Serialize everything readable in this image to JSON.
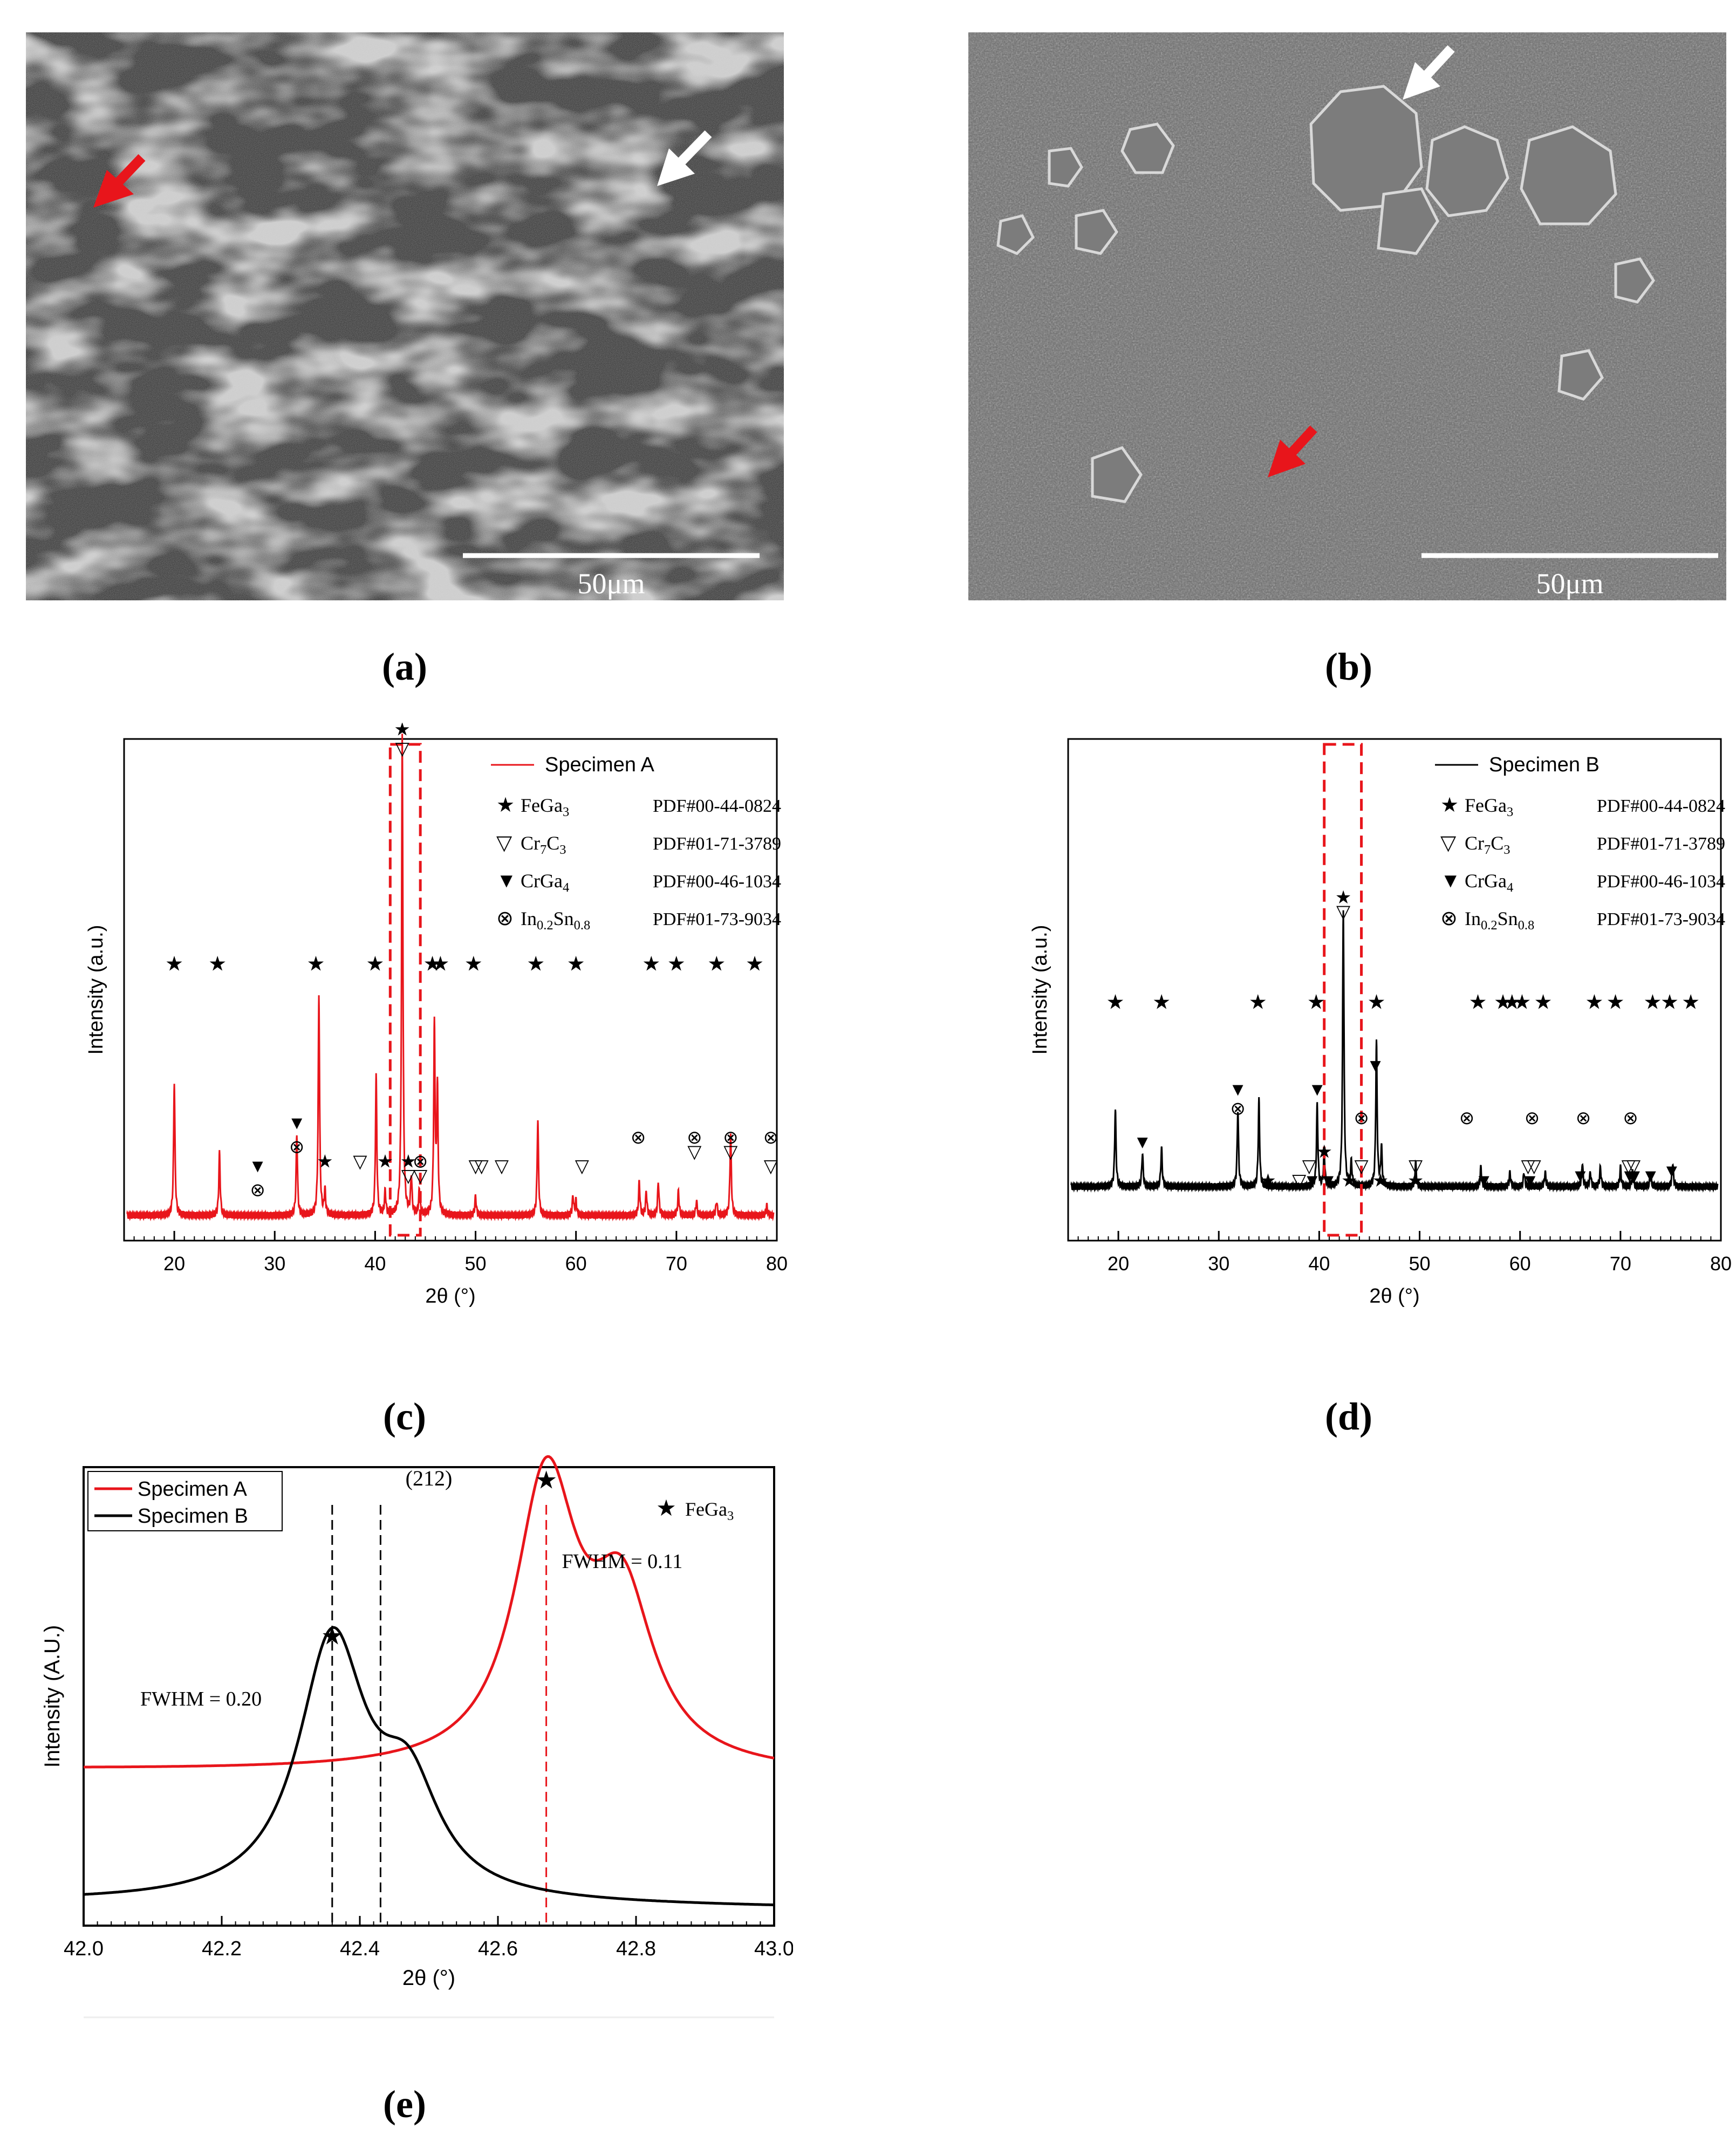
{
  "panels": {
    "a": {
      "label": "(a)",
      "scalebar": "50μm",
      "arrows": [
        "red-arrow",
        "white-arrow"
      ]
    },
    "b": {
      "label": "(b)",
      "scalebar": "50μm",
      "arrows": [
        "red-arrow",
        "white-arrow"
      ]
    },
    "c": {
      "label": "(c)",
      "legend_series": "Specimen A"
    },
    "d": {
      "label": "(d)",
      "legend_series": "Specimen B"
    },
    "e": {
      "label": "(e)"
    }
  },
  "phase_legend": [
    {
      "symbol": "★",
      "phase": "FeGa",
      "sub": "3",
      "pdf": "PDF#00-44-0824"
    },
    {
      "symbol": "▽",
      "phase": "Cr",
      "sub": "7",
      "phase2": "C",
      "sub2": "3",
      "pdf": "PDF#01-71-3789"
    },
    {
      "symbol": "▼",
      "phase": "CrGa",
      "sub": "4",
      "pdf": "PDF#00-46-1034"
    },
    {
      "symbol": "⊗",
      "phase": "In",
      "sub": "0.2",
      "phase2": "Sn",
      "sub2": "0.8",
      "pdf": "PDF#01-73-9034"
    }
  ],
  "chart_data": [
    {
      "id": "c",
      "type": "line",
      "xlabel": "2θ (°)",
      "ylabel": "Intensity (a.u.)",
      "xlim": [
        15,
        80
      ],
      "ylim": [
        0,
        100
      ],
      "x_ticks": [
        20,
        30,
        40,
        50,
        60,
        70,
        80
      ],
      "series": [
        {
          "name": "Specimen A",
          "color": "#e8151b",
          "baseline": 3,
          "peaks": [
            [
              20.0,
              28
            ],
            [
              24.5,
              13
            ],
            [
              32.2,
              17
            ],
            [
              34.4,
              46
            ],
            [
              35.0,
              5
            ],
            [
              40.1,
              29
            ],
            [
              41.0,
              5
            ],
            [
              42.7,
              100
            ],
            [
              43.6,
              8
            ],
            [
              44.4,
              5
            ],
            [
              45.9,
              39
            ],
            [
              46.2,
              26
            ],
            [
              50.0,
              4
            ],
            [
              56.2,
              20
            ],
            [
              59.7,
              4
            ],
            [
              60.0,
              3
            ],
            [
              66.3,
              7
            ],
            [
              67.0,
              5
            ],
            [
              68.2,
              7
            ],
            [
              70.2,
              5
            ],
            [
              72.0,
              3
            ],
            [
              74.0,
              3
            ],
            [
              75.4,
              17
            ],
            [
              79.0,
              2
            ]
          ]
        }
      ],
      "highlight_box": [
        41.5,
        44.5
      ]
    },
    {
      "id": "d",
      "type": "line",
      "xlabel": "2θ (°)",
      "ylabel": "Intensity (a.u.)",
      "xlim": [
        15,
        80
      ],
      "ylim": [
        0,
        100
      ],
      "x_ticks": [
        20,
        30,
        40,
        50,
        60,
        70,
        80
      ],
      "series": [
        {
          "name": "Specimen B",
          "color": "#000000",
          "baseline": 9,
          "peaks": [
            [
              19.7,
              16
            ],
            [
              22.4,
              7
            ],
            [
              24.3,
              8
            ],
            [
              31.9,
              16
            ],
            [
              34.0,
              18
            ],
            [
              39.8,
              17
            ],
            [
              40.5,
              7
            ],
            [
              42.4,
              58
            ],
            [
              43.2,
              5
            ],
            [
              45.7,
              30
            ],
            [
              46.2,
              8
            ],
            [
              49.6,
              5
            ],
            [
              56.1,
              4
            ],
            [
              59.0,
              3
            ],
            [
              60.4,
              3
            ],
            [
              62.5,
              3
            ],
            [
              66.2,
              5
            ],
            [
              67.0,
              3
            ],
            [
              68.0,
              4
            ],
            [
              70.0,
              4
            ],
            [
              71.2,
              3
            ],
            [
              73.0,
              3
            ],
            [
              75.2,
              5
            ]
          ]
        }
      ],
      "highlight_box": [
        40.5,
        44.2
      ]
    },
    {
      "id": "e",
      "type": "line",
      "xlabel": "2θ (°)",
      "ylabel": "Intensity (A.U.)",
      "xlim": [
        42.0,
        43.0
      ],
      "ylim": [
        0,
        100
      ],
      "x_ticks": [
        42.0,
        42.2,
        42.4,
        42.6,
        42.8,
        43.0
      ],
      "series": [
        {
          "name": "Specimen A",
          "color": "#e8151b",
          "baseline": 34,
          "peaks": [
            [
              42.67,
              62,
              0.055
            ],
            [
              42.78,
              35,
              0.055
            ]
          ]
        },
        {
          "name": "Specimen B",
          "color": "#000000",
          "baseline": 5,
          "peaks": [
            [
              42.36,
              56,
              0.06
            ],
            [
              42.47,
              22,
              0.055
            ]
          ]
        }
      ],
      "annotations": [
        {
          "text": "FWHM = 0.11",
          "x": 42.78,
          "y": 78
        },
        {
          "text": "FWHM = 0.20",
          "x": 42.17,
          "y": 48
        },
        {
          "text": "(212)",
          "x": 42.5,
          "y": 96
        },
        {
          "text": "FeGa",
          "sub": "3"
        }
      ],
      "vlines": [
        {
          "x": 42.36,
          "color": "#000000"
        },
        {
          "x": 42.43,
          "color": "#000000"
        },
        {
          "x": 42.67,
          "color": "#e8151b"
        }
      ]
    }
  ]
}
